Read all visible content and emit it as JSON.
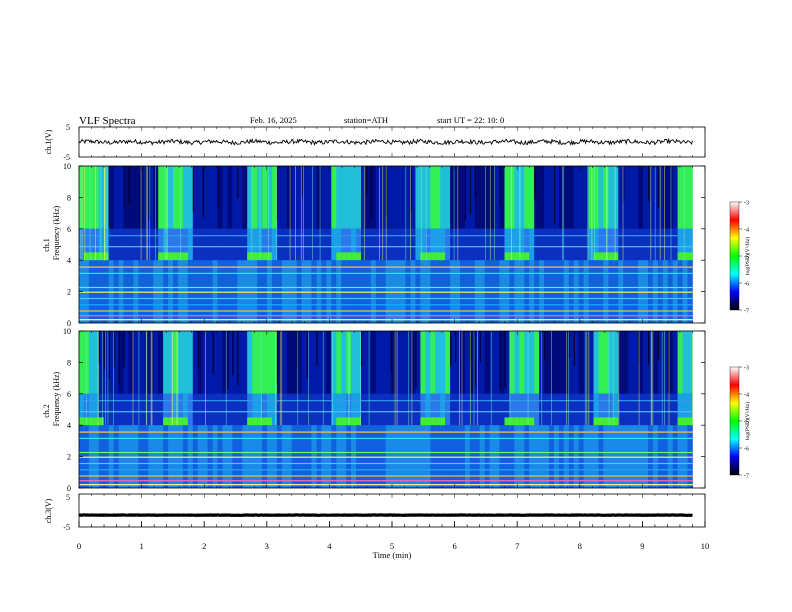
{
  "header": {
    "title": "VLF  Spectra",
    "date": "Feb. 16, 2025",
    "station": "station=ATH",
    "start": "start  UT  =    22: 10: 0"
  },
  "chart_data": [
    {
      "type": "line",
      "name": "ch1-waveform",
      "ylabel": "ch.1(V)",
      "ylim": [
        -5,
        5
      ],
      "yticks": [
        "5",
        "-5"
      ],
      "xlim": [
        0,
        10
      ],
      "baseline": 0
    },
    {
      "type": "heatmap",
      "name": "ch1-spectrogram",
      "ylabel_top": "ch.1",
      "ylabel": "Frequency  (kHz)",
      "ylim": [
        0,
        10
      ],
      "yticks": [
        "0",
        "2",
        "4",
        "6",
        "8",
        "10"
      ],
      "xlim": [
        0,
        9.8
      ],
      "colorbar": {
        "label": "log(PSD)(V²/Hz)",
        "range": [
          -7,
          -3
        ],
        "ticks": [
          "-3",
          "-4",
          "-5",
          "-6",
          "-7"
        ],
        "colors": [
          "#000000",
          "#0000ff",
          "#00ffff",
          "#00ff00",
          "#ffff00",
          "#ff0000",
          "#ffffff"
        ]
      },
      "quiet_intervals_min": [
        [
          0.45,
          1.3
        ],
        [
          1.8,
          2.65
        ],
        [
          3.15,
          4.05
        ],
        [
          4.5,
          5.4
        ],
        [
          5.9,
          6.8
        ],
        [
          7.25,
          8.15
        ],
        [
          8.65,
          9.55
        ]
      ],
      "band_4khz_intervals_min": [
        [
          0.05,
          0.45
        ],
        [
          1.3,
          1.75
        ],
        [
          2.7,
          3.1
        ],
        [
          4.1,
          4.5
        ],
        [
          5.45,
          5.85
        ],
        [
          6.8,
          7.2
        ],
        [
          8.2,
          8.6
        ],
        [
          9.6,
          9.8
        ]
      ]
    },
    {
      "type": "heatmap",
      "name": "ch2-spectrogram",
      "ylabel_top": "ch.2",
      "ylabel": "Frequency  (kHz)",
      "ylim": [
        0,
        10
      ],
      "yticks": [
        "0",
        "2",
        "4",
        "6",
        "8",
        "10"
      ],
      "xlim": [
        0,
        9.8
      ],
      "colorbar": {
        "label": "log(PSD)(V²/Hz)",
        "range": [
          -7,
          -3
        ],
        "ticks": [
          "-3",
          "-4",
          "-5",
          "-6",
          "-7"
        ],
        "colors": [
          "#000000",
          "#0000ff",
          "#00ffff",
          "#00ff00",
          "#ffff00",
          "#ff0000",
          "#ffffff"
        ]
      },
      "quiet_intervals_min": [
        [
          0.3,
          1.35
        ],
        [
          1.8,
          2.7
        ],
        [
          3.15,
          4.05
        ],
        [
          4.5,
          5.45
        ],
        [
          5.9,
          6.85
        ],
        [
          7.35,
          8.2
        ],
        [
          8.65,
          9.6
        ]
      ],
      "band_4khz_intervals_min": [
        [
          0.0,
          0.4
        ],
        [
          1.35,
          1.75
        ],
        [
          2.7,
          3.1
        ],
        [
          4.1,
          4.5
        ],
        [
          5.45,
          5.85
        ],
        [
          6.8,
          7.25
        ],
        [
          8.2,
          8.6
        ],
        [
          9.6,
          9.8
        ]
      ]
    },
    {
      "type": "line",
      "name": "ch3-waveform",
      "ylabel": "ch.3(V)",
      "ylim": [
        -5,
        5
      ],
      "yticks": [
        "5",
        "0",
        "-5"
      ],
      "xlim": [
        0,
        9.8
      ],
      "baseline": -1.4,
      "xlabel": "Time  (min)",
      "xticks": [
        "0",
        "1",
        "2",
        "3",
        "4",
        "5",
        "6",
        "7",
        "8",
        "9",
        "10"
      ],
      "xrange": [
        0,
        10
      ]
    }
  ]
}
